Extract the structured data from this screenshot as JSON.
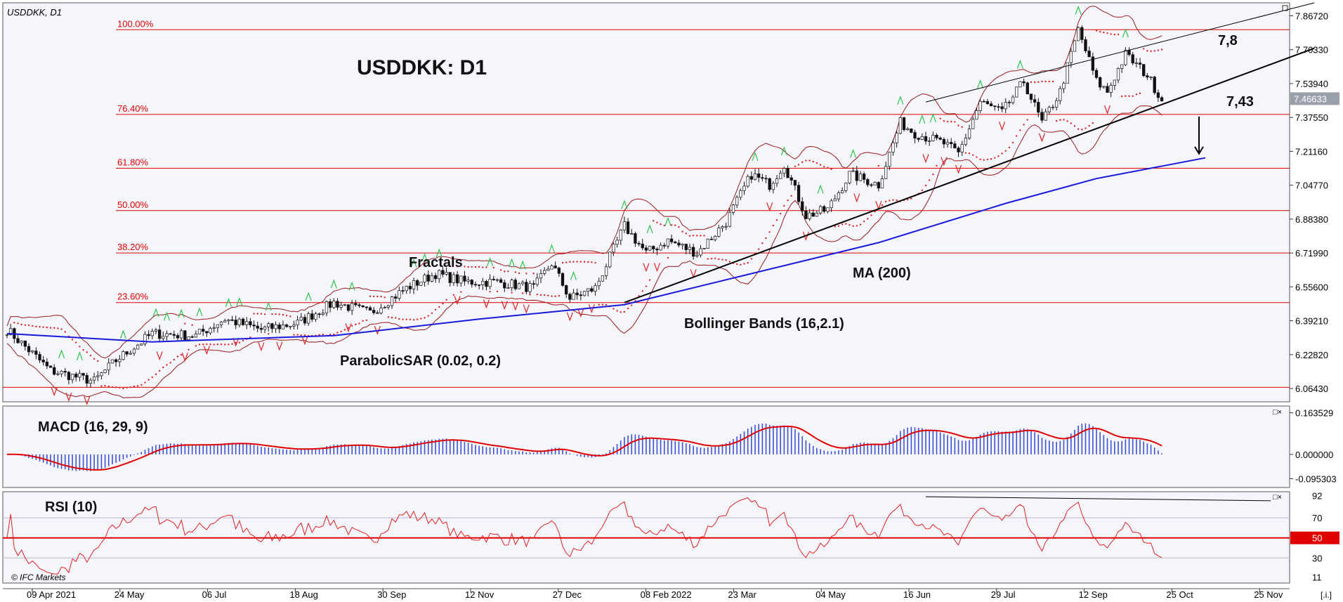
{
  "window": {
    "symbol_label": "USDDKK, D1",
    "watermark": "© IFC Markets",
    "corner_glyph": "[.i.]"
  },
  "annotations": {
    "title": "USDDKK: D1",
    "fractals": "Fractals",
    "parabolic_sar": "ParabolicSAR (0.02, 0.2)",
    "bollinger": "Bollinger Bands (16,2.1)",
    "ma": "MA (200)",
    "target_high": "7,8",
    "target_low": "7,43"
  },
  "colors": {
    "background": "#ffffff",
    "plot_bg": "#f4f6fb",
    "ma_line": "#1a1adc",
    "bollinger": "#9b1a1a",
    "fib_lines": "#e00000",
    "fractal_up": "#2fc24a",
    "fractal_down": "#e02020",
    "sar_dots": "#e02020",
    "macd_hist": "#3c50d8",
    "macd_signal": "#e00000",
    "rsi_line": "#e02020",
    "rsi_level": "#e00000",
    "price_badge": "#e00000"
  },
  "chart_data": [
    {
      "type": "candlestick",
      "title": "USDDKK: D1",
      "ylim": [
        6.0,
        7.93
      ],
      "y_ticks": [
        "7.86720",
        "7.70330",
        "7.53940",
        "7.37550",
        "7.21160",
        "7.04770",
        "6.88380",
        "6.71990",
        "6.55600",
        "6.39210",
        "6.22820",
        "6.06430"
      ],
      "current_price": "7.46633",
      "x_ticks": [
        "09 Apr 2021",
        "24 May",
        "06 Jul",
        "18 Aug",
        "30 Sep",
        "12 Nov",
        "27 Dec",
        "08 Feb 2022",
        "23 Mar",
        "04 May",
        "16 Jun",
        "29 Jul",
        "12 Sep",
        "25 Oct",
        "25 Nov"
      ],
      "fibonacci_levels": [
        {
          "label": "100.00%",
          "value": 7.8
        },
        {
          "label": "76.40%",
          "value": 7.39
        },
        {
          "label": "61.80%",
          "value": 7.13
        },
        {
          "label": "50.00%",
          "value": 6.925
        },
        {
          "label": "38.20%",
          "value": 6.72
        },
        {
          "label": "23.60%",
          "value": 6.48
        },
        {
          "label": "",
          "value": 6.07
        }
      ],
      "price_anchors": [
        [
          0,
          6.35
        ],
        [
          12,
          6.15
        ],
        [
          24,
          6.1
        ],
        [
          30,
          6.2
        ],
        [
          40,
          6.33
        ],
        [
          52,
          6.32
        ],
        [
          60,
          6.4
        ],
        [
          70,
          6.35
        ],
        [
          80,
          6.38
        ],
        [
          90,
          6.48
        ],
        [
          100,
          6.43
        ],
        [
          110,
          6.55
        ],
        [
          118,
          6.62
        ],
        [
          126,
          6.58
        ],
        [
          135,
          6.58
        ],
        [
          145,
          6.55
        ],
        [
          150,
          6.67
        ],
        [
          155,
          6.5
        ],
        [
          162,
          6.55
        ],
        [
          170,
          6.85
        ],
        [
          176,
          6.72
        ],
        [
          182,
          6.78
        ],
        [
          190,
          6.72
        ],
        [
          198,
          6.87
        ],
        [
          205,
          7.1
        ],
        [
          210,
          7.05
        ],
        [
          214,
          7.15
        ],
        [
          220,
          6.9
        ],
        [
          226,
          6.93
        ],
        [
          232,
          7.1
        ],
        [
          240,
          7.05
        ],
        [
          246,
          7.35
        ],
        [
          250,
          7.3
        ],
        [
          258,
          7.25
        ],
        [
          262,
          7.2
        ],
        [
          268,
          7.45
        ],
        [
          274,
          7.4
        ],
        [
          280,
          7.55
        ],
        [
          285,
          7.35
        ],
        [
          290,
          7.5
        ],
        [
          295,
          7.8
        ],
        [
          300,
          7.55
        ],
        [
          303,
          7.5
        ],
        [
          308,
          7.68
        ],
        [
          314,
          7.58
        ],
        [
          318,
          7.46
        ]
      ],
      "ma200": [
        [
          0,
          6.33
        ],
        [
          40,
          6.29
        ],
        [
          90,
          6.32
        ],
        [
          130,
          6.4
        ],
        [
          170,
          6.47
        ],
        [
          205,
          6.62
        ],
        [
          240,
          6.77
        ],
        [
          275,
          6.96
        ],
        [
          300,
          7.08
        ],
        [
          330,
          7.18
        ]
      ],
      "trendline": [
        [
          170,
          6.48
        ],
        [
          360,
          7.71
        ]
      ],
      "channel_line": [
        [
          253,
          7.45
        ],
        [
          360,
          7.93
        ]
      ],
      "target_arrow_from": [
        7.38,
        7.2
      ],
      "n_candles": 319
    },
    {
      "type": "macd",
      "title": "MACD (16, 29, 9)",
      "y_ticks": [
        "0.163529",
        "0.000000",
        "-0.095303"
      ],
      "ylim": [
        -0.13,
        0.19
      ]
    },
    {
      "type": "line",
      "title": "RSI (10)",
      "y_ticks": [
        "92",
        "70",
        "50",
        "30",
        "11"
      ],
      "ylim": [
        5,
        96
      ],
      "highlighted_level": "50",
      "divergence_line": [
        [
          253,
          91
        ],
        [
          348,
          87
        ]
      ]
    }
  ]
}
